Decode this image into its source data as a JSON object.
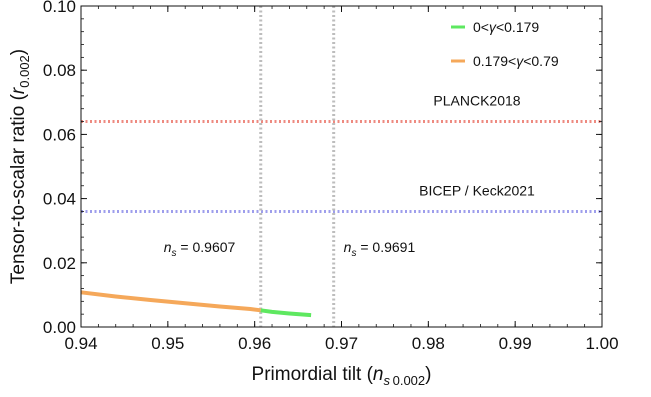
{
  "chart_data": {
    "type": "line",
    "xlabel": {
      "prefix": "Primordial tilt (",
      "var": "n",
      "sub": "s ",
      "sub2": "0.002",
      "suffix": ")"
    },
    "ylabel": {
      "prefix": "Tensor-to-scalar ratio (",
      "var": "r",
      "sub": "0.002",
      "suffix": ")"
    },
    "xlim": [
      0.94,
      1.0
    ],
    "ylim": [
      0.0,
      0.1
    ],
    "xticks": [
      {
        "value": 0.94,
        "label": "0.94"
      },
      {
        "value": 0.95,
        "label": "0.95"
      },
      {
        "value": 0.96,
        "label": "0.96"
      },
      {
        "value": 0.97,
        "label": "0.97"
      },
      {
        "value": 0.98,
        "label": "0.98"
      },
      {
        "value": 0.99,
        "label": "0.99"
      },
      {
        "value": 1.0,
        "label": "1.00"
      }
    ],
    "yticks": [
      {
        "value": 0.0,
        "label": "0.00"
      },
      {
        "value": 0.02,
        "label": "0.02"
      },
      {
        "value": 0.04,
        "label": "0.04"
      },
      {
        "value": 0.06,
        "label": "0.06"
      },
      {
        "value": 0.08,
        "label": "0.08"
      },
      {
        "value": 0.1,
        "label": "0.10"
      }
    ],
    "grid": false,
    "legend_position": "top-right",
    "series": [
      {
        "name": "0.179<γ<0.79",
        "name_parts": {
          "pre": "0.179<",
          "var": "γ",
          "post": "<0.79"
        },
        "color": "#F5A85A",
        "x": [
          0.94,
          0.944,
          0.948,
          0.952,
          0.956,
          0.9595,
          0.9607
        ],
        "y": [
          0.0108,
          0.0095,
          0.0084,
          0.0074,
          0.0064,
          0.0056,
          0.0052
        ]
      },
      {
        "name": "0<γ<0.179",
        "name_parts": {
          "pre": "0<",
          "var": "γ",
          "post": "<0.179"
        },
        "color": "#5EE860",
        "x": [
          0.9607,
          0.962,
          0.964,
          0.9665
        ],
        "y": [
          0.0052,
          0.0047,
          0.0042,
          0.0037
        ]
      }
    ],
    "horizontal_lines": [
      {
        "label": "PLANCK2018",
        "y": 0.064,
        "color": "#EE8A80"
      },
      {
        "label": "BICEP / Keck2021",
        "y": 0.036,
        "color": "#9E9EEC"
      }
    ],
    "vertical_lines": [
      {
        "x": 0.9607,
        "var": "n",
        "sub": "s",
        "label_rest": " = 0.9607",
        "color": "#BDBDBD"
      },
      {
        "x": 0.9691,
        "var": "n",
        "sub": "s",
        "label_rest": " = 0.9691",
        "color": "#BDBDBD"
      }
    ]
  }
}
